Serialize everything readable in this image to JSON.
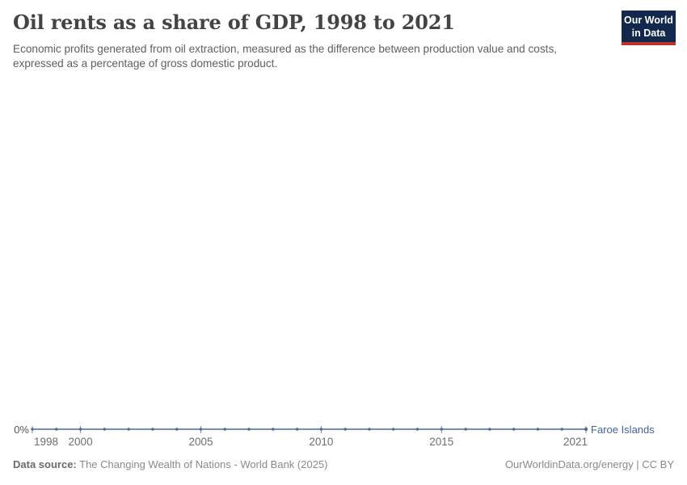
{
  "header": {
    "title": "Oil rents as a share of GDP, 1998 to 2021",
    "subtitle": "Economic profits generated from oil extraction, measured as the difference between production value and costs, expressed as a percentage of gross domestic product."
  },
  "logo": {
    "line1": "Our World",
    "line2": "in Data",
    "bg_color": "#12294d",
    "bar_color": "#be322d"
  },
  "chart_data": {
    "type": "line",
    "title": "Oil rents as a share of GDP, 1998 to 2021",
    "x": [
      1998,
      1999,
      2000,
      2001,
      2002,
      2003,
      2004,
      2005,
      2006,
      2007,
      2008,
      2009,
      2010,
      2011,
      2012,
      2013,
      2014,
      2015,
      2016,
      2017,
      2018,
      2019,
      2020,
      2021
    ],
    "series": [
      {
        "name": "Faroe Islands",
        "color": "#4c6a9c",
        "label_color": "#3d64a6",
        "values": [
          0,
          0,
          0,
          0,
          0,
          0,
          0,
          0,
          0,
          0,
          0,
          0,
          0,
          0,
          0,
          0,
          0,
          0,
          0,
          0,
          0,
          0,
          0,
          0
        ]
      }
    ],
    "x_ticks": [
      1998,
      2000,
      2005,
      2010,
      2015,
      2021
    ],
    "y_tick_labels": [
      "0%"
    ],
    "ylim": [
      0,
      0
    ],
    "unit": "%",
    "grid": false,
    "legend_position": "end-of-line"
  },
  "footer": {
    "datasource_label": "Data source:",
    "datasource_text": "The Changing Wealth of Nations - World Bank (2025)",
    "credit": "OurWorldinData.org/energy | CC BY"
  }
}
